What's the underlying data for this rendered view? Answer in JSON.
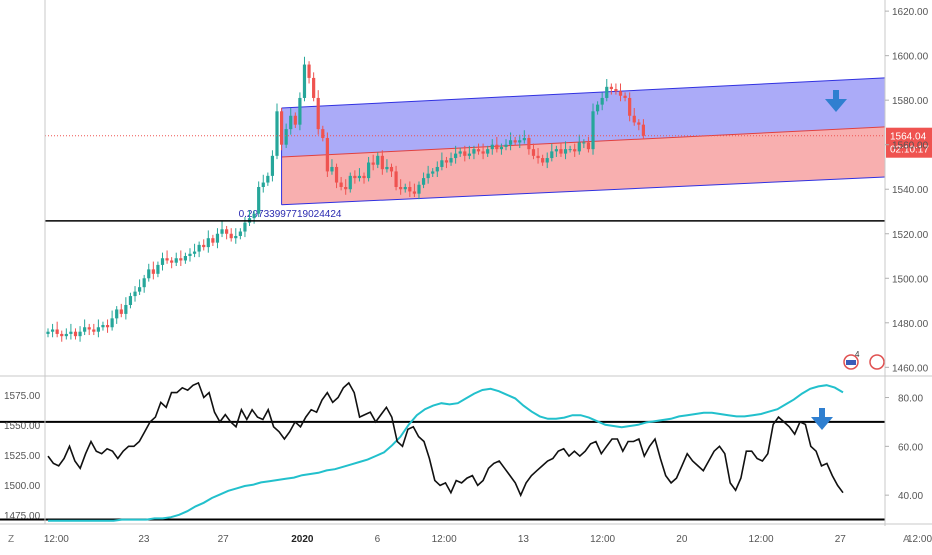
{
  "chart_data": [
    {
      "type": "candlestick",
      "price_axis": {
        "ticks": [
          1460,
          1480,
          1500,
          1520,
          1540,
          1560,
          1580,
          1600,
          1620
        ],
        "labels": [
          "1460.00",
          "1480.00",
          "1500.00",
          "1520.00",
          "1540.00",
          "1560.00",
          "1580.00",
          "1600.00",
          "1620.00"
        ],
        "ylim": [
          1457,
          1625
        ]
      },
      "current_price": {
        "label": "1564.04",
        "countdown": "02:10:17",
        "color": "#ef5350"
      },
      "horizontal_line": {
        "price": 1525.8
      },
      "channel_label": "0.29733997719024424",
      "channel": {
        "upper_color": "#9c9cf7",
        "lower_color": "#f7a1a1",
        "line_color": "#3030e0",
        "start_index": 51,
        "end_index": 125,
        "top": [
          1576.5,
          1590
        ],
        "mid": [
          1554.5,
          1568
        ],
        "bottom": [
          1533,
          1545.5
        ]
      },
      "closes": [
        1476,
        1477,
        1475,
        1474,
        1475,
        1476,
        1474,
        1476,
        1478,
        1477,
        1476,
        1478,
        1479,
        1478,
        1482,
        1486,
        1484,
        1488,
        1492,
        1494,
        1496,
        1500,
        1504,
        1502,
        1506,
        1509,
        1508,
        1507,
        1509,
        1508,
        1510,
        1511,
        1512,
        1515,
        1514,
        1518,
        1516,
        1520,
        1522,
        1520,
        1518,
        1519,
        1521,
        1525,
        1527,
        1529,
        1541,
        1543,
        1546,
        1555,
        1575,
        1560,
        1567,
        1573,
        1569,
        1581,
        1596,
        1590,
        1581,
        1567,
        1563,
        1548,
        1550,
        1543,
        1541,
        1540,
        1546,
        1545,
        1546,
        1545,
        1552,
        1551,
        1555,
        1549,
        1550,
        1548,
        1541,
        1540,
        1541,
        1539,
        1538,
        1542,
        1545,
        1547,
        1548,
        1550,
        1553,
        1552,
        1554,
        1556,
        1557,
        1555,
        1556,
        1558,
        1557,
        1556,
        1558,
        1560,
        1558,
        1559,
        1560,
        1562,
        1561,
        1562,
        1563,
        1558,
        1555,
        1554,
        1552,
        1554,
        1557,
        1558,
        1556,
        1558,
        1558,
        1557,
        1561,
        1561,
        1558,
        1575,
        1578,
        1581,
        1586,
        1585,
        1584,
        1582,
        1581,
        1573,
        1570,
        1569,
        1564
      ],
      "x_ticks": [
        {
          "label": "12:00",
          "i": 2
        },
        {
          "label": "23",
          "i": 23
        },
        {
          "label": "27",
          "i": 42
        },
        {
          "label": "2020",
          "i": 61
        },
        {
          "label": "6",
          "i": 79
        },
        {
          "label": "12:00",
          "i": 95
        },
        {
          "label": "13",
          "i": 114
        },
        {
          "label": "12:00",
          "i": 133
        },
        {
          "label": "20",
          "i": 152
        },
        {
          "label": "12:00",
          "i": 171
        },
        {
          "label": "27",
          "i": 190
        },
        {
          "label": "12:00",
          "i": 209
        }
      ],
      "down_arrow_color": "#2f7fd0",
      "badge_label": "4"
    },
    {
      "type": "line",
      "left_axis": {
        "ticks": [
          1475,
          1500,
          1525,
          1550,
          1575
        ],
        "labels": [
          "1475.00",
          "1500.00",
          "1525.00",
          "1550.00",
          "1575.00"
        ],
        "ylim": [
          1469,
          1589
        ]
      },
      "right_axis": {
        "ticks": [
          40,
          60,
          80
        ],
        "labels": [
          "40.00",
          "60.00",
          "80.00"
        ],
        "ylim": [
          29,
          88
        ]
      },
      "levels": [
        70,
        30
      ],
      "series": [
        {
          "axis": "left",
          "color": "#22c0cc",
          "values": [
            1470,
            1470,
            1470,
            1470,
            1470,
            1470,
            1470,
            1470,
            1470,
            1471,
            1471,
            1471,
            1471,
            1472,
            1472,
            1473,
            1475,
            1478,
            1482,
            1485,
            1489,
            1492,
            1495,
            1497,
            1499,
            1500,
            1502,
            1503,
            1504,
            1505,
            1506,
            1508,
            1509,
            1510,
            1512,
            1513,
            1515,
            1517,
            1519,
            1521,
            1524,
            1527,
            1533,
            1540,
            1550,
            1558,
            1563,
            1566,
            1568,
            1567,
            1568,
            1572,
            1576,
            1579,
            1580,
            1578,
            1575,
            1572,
            1566,
            1561,
            1557,
            1555,
            1555,
            1556,
            1558,
            1558,
            1556,
            1553,
            1550,
            1549,
            1548,
            1549,
            1550,
            1552,
            1553,
            1554,
            1555,
            1557,
            1558,
            1559,
            1560,
            1560,
            1559,
            1558,
            1557,
            1557,
            1558,
            1559,
            1561,
            1563,
            1567,
            1571,
            1576,
            1580,
            1582,
            1583,
            1581,
            1577
          ]
        },
        {
          "axis": "right",
          "color": "#111111",
          "values": [
            56,
            53,
            52,
            55,
            60,
            54,
            51,
            57,
            62,
            58,
            57,
            59,
            58,
            55,
            58,
            60,
            60,
            62,
            66,
            70,
            72,
            78,
            76,
            82,
            82,
            84,
            83,
            85,
            86,
            80,
            82,
            74,
            70,
            73,
            70,
            68,
            75,
            71,
            75,
            72,
            71,
            75,
            68,
            66,
            63,
            66,
            70,
            68,
            72,
            75,
            74,
            79,
            82,
            78,
            80,
            84,
            86,
            82,
            72,
            73,
            74,
            70,
            73,
            76,
            72,
            62,
            60,
            67,
            68,
            64,
            62,
            55,
            46,
            44,
            45,
            41,
            46,
            45,
            47,
            48,
            44,
            46,
            51,
            53,
            54,
            51,
            48,
            45,
            40,
            45,
            48,
            50,
            52,
            54,
            55,
            58,
            59,
            56,
            58,
            56,
            58,
            61,
            62,
            57,
            60,
            63,
            63,
            58,
            62,
            62,
            63,
            56,
            60,
            63,
            55,
            48,
            45,
            47,
            52,
            57,
            54,
            52,
            50,
            54,
            58,
            60,
            57,
            45,
            42,
            47,
            58,
            58,
            55,
            54,
            57,
            69,
            72,
            70,
            68,
            65,
            70,
            69,
            60,
            58,
            52,
            53,
            48,
            44,
            41
          ]
        }
      ],
      "down_arrow_color": "#2f7fd0"
    }
  ],
  "bottom_bar": {
    "left_label": "Z",
    "right_label": "A"
  }
}
